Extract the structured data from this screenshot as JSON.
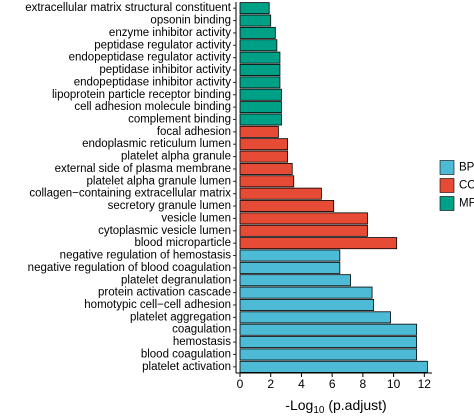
{
  "chart_data": {
    "type": "bar",
    "orientation": "horizontal",
    "x_label": [
      "-Log",
      "10",
      " (p.adjust)"
    ],
    "xlim": [
      -0.26,
      12.5
    ],
    "xticks": [
      0,
      2,
      4,
      6,
      8,
      10,
      12
    ],
    "legend": "right",
    "series": [
      {
        "name": "MF",
        "color": "#00A087",
        "categories": [
          "extracellular matrix structural constituent",
          "opsonin binding",
          "enzyme inhibitor activity",
          "peptidase regulator activity",
          "endopeptidase regulator activity",
          "peptidase inhibitor activity",
          "endopeptidase inhibitor activity",
          "lipoprotein particle receptor binding",
          "cell adhesion molecule binding",
          "complement binding"
        ],
        "values": [
          1.9,
          2.0,
          2.3,
          2.4,
          2.6,
          2.6,
          2.6,
          2.7,
          2.7,
          2.7
        ]
      },
      {
        "name": "CC",
        "color": "#E64B35",
        "categories": [
          "focal adhesion",
          "endoplasmic reticulum lumen",
          "platelet alpha granule",
          "external side of plasma membrane",
          "platelet alpha granule lumen",
          "collagen−containing extracellular matrix",
          "secretory granule lumen",
          "vesicle lumen",
          "cytoplasmic vesicle lumen",
          "blood microparticle"
        ],
        "values": [
          2.5,
          3.1,
          3.1,
          3.4,
          3.5,
          5.3,
          6.1,
          8.3,
          8.3,
          10.2
        ]
      },
      {
        "name": "BP",
        "color": "#4DBBD5",
        "categories": [
          "negative regulation of hemostasis",
          "negative regulation of blood coagulation",
          "platelet degranulation",
          "protein activation cascade",
          "homotypic cell−cell adhesion",
          "platelet aggregation",
          "coagulation",
          "hemostasis",
          "blood coagulation",
          "platelet activation"
        ],
        "values": [
          6.5,
          6.5,
          7.2,
          8.6,
          8.7,
          9.8,
          11.5,
          11.5,
          11.5,
          12.2
        ]
      }
    ]
  }
}
